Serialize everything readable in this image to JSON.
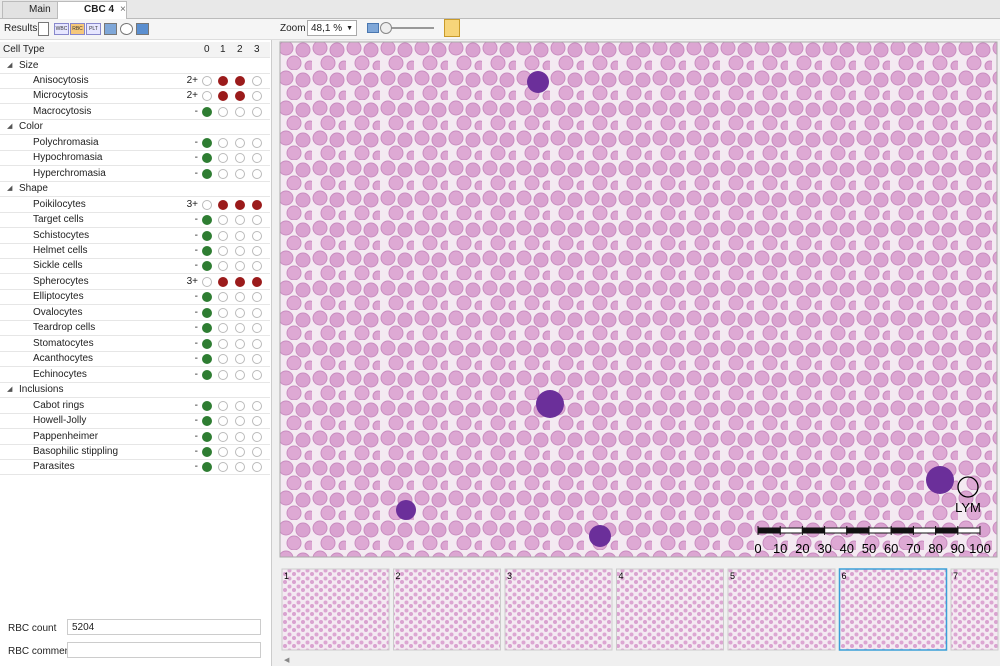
{
  "tabs": [
    "Main",
    "CBC 4"
  ],
  "toolbar": {
    "results_label": "Results",
    "icons": [
      "WBC",
      "RBC",
      "PLT"
    ],
    "zoom_label": "Zoom",
    "zoom_value": "48,1 %"
  },
  "table": {
    "header": {
      "name": "Cell Type",
      "levels": [
        0,
        1,
        2,
        3
      ]
    },
    "groups": [
      {
        "name": "Size",
        "rows": [
          {
            "name": "Anisocytosis",
            "grade": "2+",
            "level": 2
          },
          {
            "name": "Microcytosis",
            "grade": "2+",
            "level": 2
          },
          {
            "name": "Macrocytosis",
            "grade": "-",
            "level": 0
          }
        ]
      },
      {
        "name": "Color",
        "rows": [
          {
            "name": "Polychromasia",
            "grade": "-",
            "level": 0
          },
          {
            "name": "Hypochromasia",
            "grade": "-",
            "level": 0
          },
          {
            "name": "Hyperchromasia",
            "grade": "-",
            "level": 0
          }
        ]
      },
      {
        "name": "Shape",
        "rows": [
          {
            "name": "Poikilocytes",
            "grade": "3+",
            "level": 3
          },
          {
            "name": "Target cells",
            "grade": "-",
            "level": 0
          },
          {
            "name": "Schistocytes",
            "grade": "-",
            "level": 0
          },
          {
            "name": "Helmet cells",
            "grade": "-",
            "level": 0
          },
          {
            "name": "Sickle cells",
            "grade": "-",
            "level": 0
          },
          {
            "name": "Spherocytes",
            "grade": "3+",
            "level": 3
          },
          {
            "name": "Elliptocytes",
            "grade": "-",
            "level": 0
          },
          {
            "name": "Ovalocytes",
            "grade": "-",
            "level": 0
          },
          {
            "name": "Teardrop cells",
            "grade": "-",
            "level": 0
          },
          {
            "name": "Stomatocytes",
            "grade": "-",
            "level": 0
          },
          {
            "name": "Acanthocytes",
            "grade": "-",
            "level": 0
          },
          {
            "name": "Echinocytes",
            "grade": "-",
            "level": 0
          }
        ]
      },
      {
        "name": "Inclusions",
        "rows": [
          {
            "name": "Cabot rings",
            "grade": "-",
            "level": 0
          },
          {
            "name": "Howell-Jolly",
            "grade": "-",
            "level": 0
          },
          {
            "name": "Pappenheimer",
            "grade": "-",
            "level": 0
          },
          {
            "name": "Basophilic stippling",
            "grade": "-",
            "level": 0
          },
          {
            "name": "Parasites",
            "grade": "-",
            "level": 0
          }
        ]
      }
    ]
  },
  "rbc_count": {
    "label": "RBC count",
    "value": "5204"
  },
  "rbc_comment": {
    "label": "RBC comment"
  },
  "image": {
    "scale_labels": [
      0,
      10,
      20,
      30,
      40,
      50,
      60,
      70,
      80,
      90,
      100
    ],
    "cell_label": "LYM"
  },
  "thumbnails": [
    "1",
    "2",
    "3",
    "4",
    "5",
    "6",
    "7"
  ]
}
